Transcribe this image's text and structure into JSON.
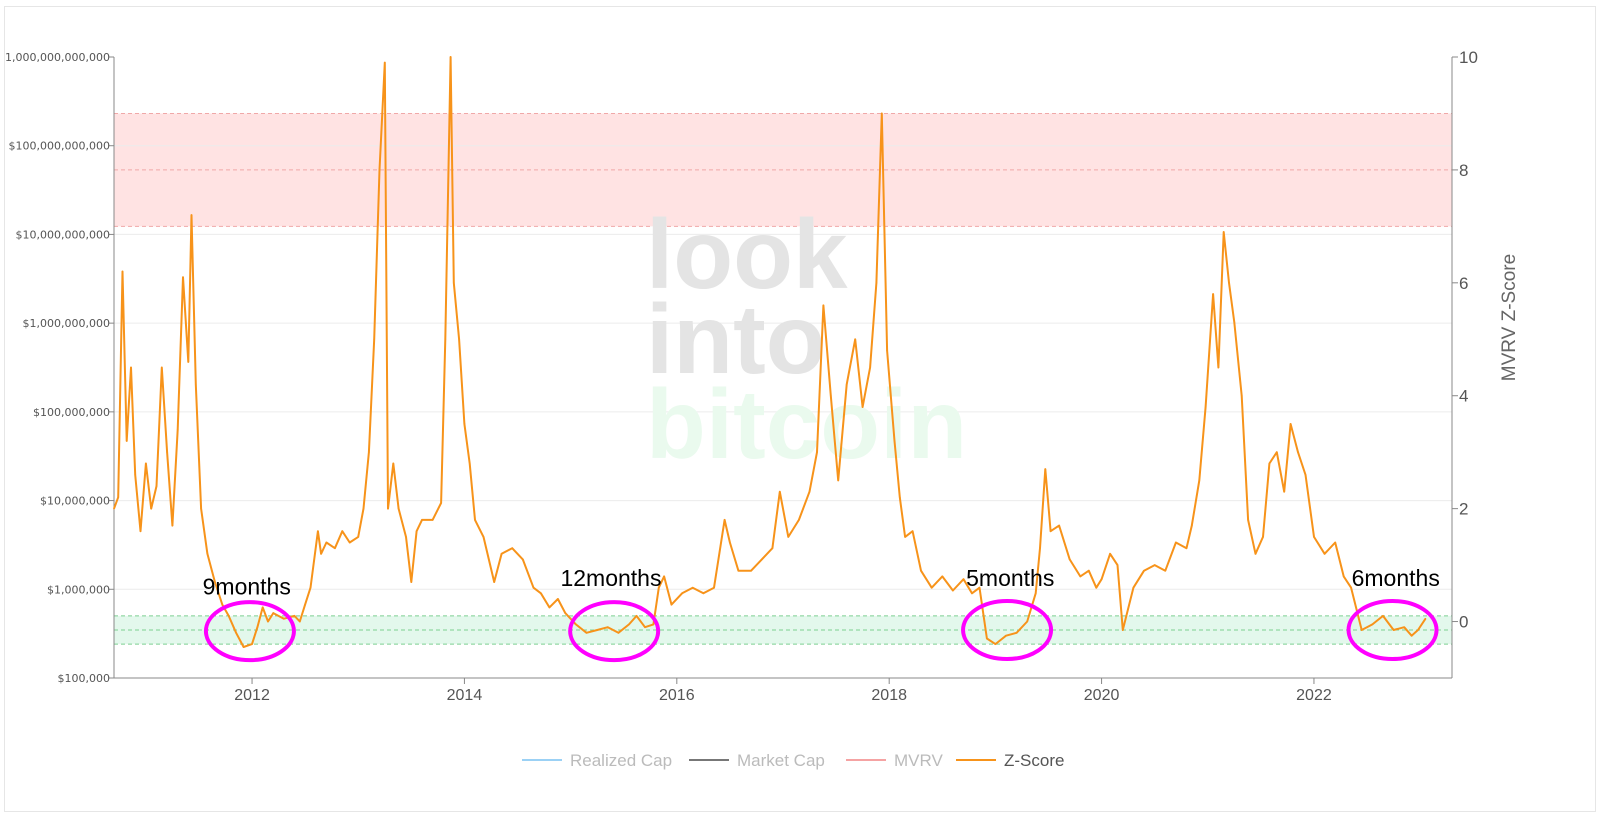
{
  "watermark": {
    "lines": [
      "look",
      "into",
      "bitcoin"
    ],
    "colors": [
      "#e4e4e4",
      "#e4e4e4",
      "#eafaee"
    ]
  },
  "legend": [
    {
      "label": "Realized Cap",
      "color": "#9bd1f5",
      "text_color": "#bbbbbb"
    },
    {
      "label": "Market Cap",
      "color": "#777777",
      "text_color": "#bbbbbb"
    },
    {
      "label": "MVRV",
      "color": "#f5a3a3",
      "text_color": "#bbbbbb"
    },
    {
      "label": "Z-Score",
      "color": "#f7931a",
      "text_color": "#555555"
    }
  ],
  "annotations": [
    {
      "label": "9months",
      "center_date": 2011.98,
      "z": -0.17,
      "text_date": 2011.95,
      "text_z": 0.62
    },
    {
      "label": "12months",
      "center_date": 2015.41,
      "z": -0.17,
      "text_date": 2015.38,
      "text_z": 0.77
    },
    {
      "label": "5months",
      "center_date": 2019.11,
      "z": -0.15,
      "text_date": 2019.14,
      "text_z": 0.77
    },
    {
      "label": "6months",
      "center_date": 2022.74,
      "z": -0.15,
      "text_date": 2022.77,
      "text_z": 0.77
    }
  ],
  "chart_data": {
    "type": "line",
    "title": "",
    "x_axis": {
      "label": "",
      "range": [
        2010.7,
        2023.3
      ],
      "ticks": [
        "2012",
        "2014",
        "2016",
        "2018",
        "2020",
        "2022"
      ]
    },
    "y_axis_left": {
      "label": "",
      "scale": "log",
      "range": [
        100000,
        1000000000000
      ],
      "ticks": [
        "$100,000",
        "$1,000,000",
        "$10,000,000",
        "$100,000,000",
        "$1,000,000,000",
        "$10,000,000,000",
        "$100,000,000,000",
        "1,000,000,000,000"
      ]
    },
    "y_axis_right": {
      "label": "MVRV Z-Score",
      "range": [
        -1,
        10
      ],
      "ticks": [
        "0",
        "2",
        "4",
        "6",
        "8",
        "10"
      ]
    },
    "bands": [
      {
        "name": "",
        "z_range": [
          7,
          9
        ],
        "lines": [
          7,
          8,
          9
        ],
        "color": "#ffe3e3",
        "line_color": "#f0a8a8"
      },
      {
        "name": "",
        "z_range": [
          -0.4,
          0.1
        ],
        "lines": [
          -0.4,
          -0.15,
          0.1
        ],
        "color": "#e3f8ec",
        "line_color": "#7ccf90"
      }
    ],
    "grid": true,
    "legend_position": "bottom-center",
    "series": [
      {
        "name": "Z-Score",
        "color": "#f7931a",
        "points": [
          [
            2010.7,
            2.0
          ],
          [
            2010.74,
            2.2
          ],
          [
            2010.78,
            6.2
          ],
          [
            2010.82,
            3.2
          ],
          [
            2010.86,
            4.5
          ],
          [
            2010.9,
            2.6
          ],
          [
            2010.95,
            1.6
          ],
          [
            2011.0,
            2.8
          ],
          [
            2011.05,
            2.0
          ],
          [
            2011.1,
            2.4
          ],
          [
            2011.15,
            4.5
          ],
          [
            2011.2,
            3.0
          ],
          [
            2011.25,
            1.7
          ],
          [
            2011.3,
            3.4
          ],
          [
            2011.35,
            6.1
          ],
          [
            2011.4,
            4.6
          ],
          [
            2011.43,
            7.2
          ],
          [
            2011.47,
            4.2
          ],
          [
            2011.52,
            2.0
          ],
          [
            2011.58,
            1.2
          ],
          [
            2011.65,
            0.7
          ],
          [
            2011.72,
            0.3
          ],
          [
            2011.78,
            0.1
          ],
          [
            2011.85,
            -0.2
          ],
          [
            2011.92,
            -0.45
          ],
          [
            2012.0,
            -0.4
          ],
          [
            2012.05,
            -0.1
          ],
          [
            2012.1,
            0.25
          ],
          [
            2012.15,
            0.0
          ],
          [
            2012.2,
            0.15
          ],
          [
            2012.3,
            0.05
          ],
          [
            2012.4,
            0.1
          ],
          [
            2012.45,
            0.0
          ],
          [
            2012.5,
            0.3
          ],
          [
            2012.55,
            0.6
          ],
          [
            2012.62,
            1.6
          ],
          [
            2012.65,
            1.2
          ],
          [
            2012.7,
            1.4
          ],
          [
            2012.78,
            1.3
          ],
          [
            2012.85,
            1.6
          ],
          [
            2012.92,
            1.4
          ],
          [
            2013.0,
            1.5
          ],
          [
            2013.05,
            2.0
          ],
          [
            2013.1,
            3.0
          ],
          [
            2013.15,
            5.0
          ],
          [
            2013.2,
            8.0
          ],
          [
            2013.25,
            9.9
          ],
          [
            2013.28,
            2.0
          ],
          [
            2013.33,
            2.8
          ],
          [
            2013.38,
            2.0
          ],
          [
            2013.45,
            1.5
          ],
          [
            2013.5,
            0.7
          ],
          [
            2013.55,
            1.6
          ],
          [
            2013.6,
            1.8
          ],
          [
            2013.7,
            1.8
          ],
          [
            2013.78,
            2.1
          ],
          [
            2013.82,
            5.0
          ],
          [
            2013.87,
            10.0
          ],
          [
            2013.9,
            6.0
          ],
          [
            2013.95,
            5.0
          ],
          [
            2014.0,
            3.5
          ],
          [
            2014.05,
            2.8
          ],
          [
            2014.1,
            1.8
          ],
          [
            2014.18,
            1.5
          ],
          [
            2014.28,
            0.7
          ],
          [
            2014.35,
            1.2
          ],
          [
            2014.45,
            1.3
          ],
          [
            2014.55,
            1.1
          ],
          [
            2014.65,
            0.6
          ],
          [
            2014.72,
            0.5
          ],
          [
            2014.8,
            0.25
          ],
          [
            2014.88,
            0.4
          ],
          [
            2014.95,
            0.15
          ],
          [
            2015.05,
            -0.05
          ],
          [
            2015.15,
            -0.2
          ],
          [
            2015.25,
            -0.15
          ],
          [
            2015.35,
            -0.1
          ],
          [
            2015.45,
            -0.2
          ],
          [
            2015.55,
            -0.05
          ],
          [
            2015.62,
            0.1
          ],
          [
            2015.7,
            -0.1
          ],
          [
            2015.78,
            -0.05
          ],
          [
            2015.83,
            0.6
          ],
          [
            2015.88,
            0.8
          ],
          [
            2015.95,
            0.3
          ],
          [
            2016.05,
            0.5
          ],
          [
            2016.15,
            0.6
          ],
          [
            2016.25,
            0.5
          ],
          [
            2016.35,
            0.6
          ],
          [
            2016.45,
            1.8
          ],
          [
            2016.5,
            1.4
          ],
          [
            2016.58,
            0.9
          ],
          [
            2016.7,
            0.9
          ],
          [
            2016.8,
            1.1
          ],
          [
            2016.9,
            1.3
          ],
          [
            2016.97,
            2.3
          ],
          [
            2017.05,
            1.5
          ],
          [
            2017.15,
            1.8
          ],
          [
            2017.25,
            2.3
          ],
          [
            2017.32,
            3.0
          ],
          [
            2017.38,
            5.6
          ],
          [
            2017.45,
            4.0
          ],
          [
            2017.52,
            2.5
          ],
          [
            2017.6,
            4.2
          ],
          [
            2017.68,
            5.0
          ],
          [
            2017.75,
            3.8
          ],
          [
            2017.82,
            4.5
          ],
          [
            2017.88,
            6.0
          ],
          [
            2017.93,
            9.0
          ],
          [
            2017.98,
            4.8
          ],
          [
            2018.05,
            3.2
          ],
          [
            2018.1,
            2.2
          ],
          [
            2018.15,
            1.5
          ],
          [
            2018.22,
            1.6
          ],
          [
            2018.3,
            0.9
          ],
          [
            2018.4,
            0.6
          ],
          [
            2018.5,
            0.8
          ],
          [
            2018.6,
            0.55
          ],
          [
            2018.7,
            0.75
          ],
          [
            2018.78,
            0.5
          ],
          [
            2018.85,
            0.6
          ],
          [
            2018.92,
            -0.3
          ],
          [
            2019.0,
            -0.4
          ],
          [
            2019.1,
            -0.25
          ],
          [
            2019.2,
            -0.2
          ],
          [
            2019.3,
            0.0
          ],
          [
            2019.38,
            0.5
          ],
          [
            2019.42,
            1.3
          ],
          [
            2019.47,
            2.7
          ],
          [
            2019.52,
            1.6
          ],
          [
            2019.6,
            1.7
          ],
          [
            2019.7,
            1.1
          ],
          [
            2019.8,
            0.8
          ],
          [
            2019.88,
            0.9
          ],
          [
            2019.95,
            0.6
          ],
          [
            2020.0,
            0.75
          ],
          [
            2020.08,
            1.2
          ],
          [
            2020.15,
            1.0
          ],
          [
            2020.2,
            -0.15
          ],
          [
            2020.3,
            0.6
          ],
          [
            2020.4,
            0.9
          ],
          [
            2020.5,
            1.0
          ],
          [
            2020.6,
            0.9
          ],
          [
            2020.7,
            1.4
          ],
          [
            2020.8,
            1.3
          ],
          [
            2020.85,
            1.7
          ],
          [
            2020.92,
            2.5
          ],
          [
            2020.98,
            3.8
          ],
          [
            2021.05,
            5.8
          ],
          [
            2021.1,
            4.5
          ],
          [
            2021.15,
            6.9
          ],
          [
            2021.2,
            6.0
          ],
          [
            2021.25,
            5.3
          ],
          [
            2021.32,
            4.0
          ],
          [
            2021.38,
            1.8
          ],
          [
            2021.45,
            1.2
          ],
          [
            2021.52,
            1.5
          ],
          [
            2021.58,
            2.8
          ],
          [
            2021.65,
            3.0
          ],
          [
            2021.72,
            2.3
          ],
          [
            2021.78,
            3.5
          ],
          [
            2021.85,
            3.0
          ],
          [
            2021.92,
            2.6
          ],
          [
            2022.0,
            1.5
          ],
          [
            2022.1,
            1.2
          ],
          [
            2022.2,
            1.4
          ],
          [
            2022.28,
            0.8
          ],
          [
            2022.35,
            0.6
          ],
          [
            2022.45,
            -0.15
          ],
          [
            2022.55,
            -0.05
          ],
          [
            2022.65,
            0.1
          ],
          [
            2022.75,
            -0.15
          ],
          [
            2022.85,
            -0.1
          ],
          [
            2022.92,
            -0.25
          ],
          [
            2022.98,
            -0.15
          ],
          [
            2023.05,
            0.05
          ]
        ]
      }
    ]
  }
}
